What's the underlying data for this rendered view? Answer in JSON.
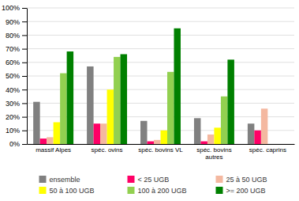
{
  "chart_data": {
    "type": "bar",
    "categories": [
      "massif Alpes",
      "spéc. ovins",
      "spéc. bovins VL",
      "spéc. bovins\nautres",
      "spéc. caprins"
    ],
    "series": [
      {
        "name": "ensemble",
        "color": "#808080",
        "values": [
          0.31,
          0.57,
          0.17,
          0.19,
          0.15
        ]
      },
      {
        "name": "< 25 UGB",
        "color": "#FF0066",
        "values": [
          0.04,
          0.15,
          0.02,
          0.02,
          0.1
        ]
      },
      {
        "name": "25 à 50 UGB",
        "color": "#F4B8A0",
        "values": [
          0.05,
          0.15,
          0.03,
          0.07,
          0.26
        ]
      },
      {
        "name": "50 à 100 UGB",
        "color": "#FFFF00",
        "values": [
          0.16,
          0.4,
          0.1,
          0.12,
          0.0
        ]
      },
      {
        "name": "100 à 200 UGB",
        "color": "#92D050",
        "values": [
          0.52,
          0.64,
          0.53,
          0.35,
          0.0
        ]
      },
      {
        "name": ">= 200 UGB",
        "color": "#008000",
        "values": [
          0.68,
          0.66,
          0.85,
          0.62,
          0.0
        ]
      }
    ],
    "ylim": [
      0,
      1.0
    ],
    "yticks": [
      {
        "value": 0,
        "label": "0%"
      },
      {
        "value": 0.1,
        "label": "10%"
      },
      {
        "value": 0.2,
        "label": "20%"
      },
      {
        "value": 0.3,
        "label": "30%"
      },
      {
        "value": 0.4,
        "label": "40%"
      },
      {
        "value": 0.5,
        "label": "50%"
      },
      {
        "value": 0.6,
        "label": "60%"
      },
      {
        "value": 0.7,
        "label": "70%"
      },
      {
        "value": 0.8,
        "label": "80%"
      },
      {
        "value": 0.9,
        "label": "90%"
      },
      {
        "value": 1.0,
        "label": "100%"
      }
    ],
    "grid": true,
    "legend": "bottom"
  }
}
